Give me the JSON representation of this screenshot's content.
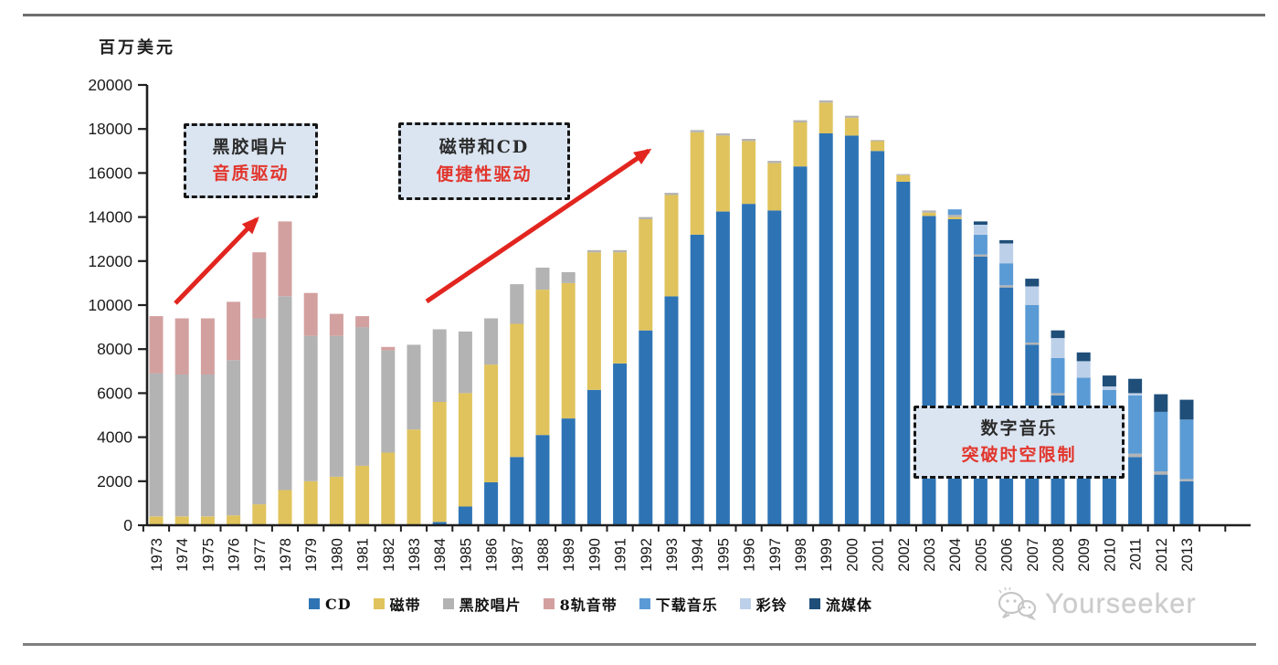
{
  "figure": {
    "unit_label": "百万美元",
    "watermark_text": "Yourseeker"
  },
  "callouts": {
    "vinyl": {
      "line1": "黑胶唱片",
      "line2": "音质驱动"
    },
    "cassette_cd": {
      "line1": "磁带和CD",
      "line2": "便捷性驱动"
    },
    "digital": {
      "line1": "数字音乐",
      "line2": "突破时空限制"
    }
  },
  "colors": {
    "axis": "#1f1f1f",
    "arrow": "#e2251f",
    "callout_bg": "#dbe5f1",
    "callout_red_text": "#e2352c"
  },
  "chart_data": {
    "type": "bar",
    "stacked": true,
    "title": "",
    "ylabel": "百万美元",
    "xlabel": "",
    "ylim": [
      0,
      20000
    ],
    "ytick_step": 2000,
    "grid": false,
    "legend_position": "bottom",
    "x": [
      1973,
      1974,
      1975,
      1976,
      1977,
      1978,
      1979,
      1980,
      1981,
      1982,
      1983,
      1984,
      1985,
      1986,
      1987,
      1988,
      1989,
      1990,
      1991,
      1992,
      1993,
      1994,
      1995,
      1996,
      1997,
      1998,
      1999,
      2000,
      2001,
      2002,
      2003,
      2004,
      2005,
      2006,
      2007,
      2008,
      2009,
      2010,
      2011,
      2012,
      2013
    ],
    "series": [
      {
        "name": "CD",
        "color": "#2e74b5",
        "values": [
          0,
          0,
          0,
          0,
          0,
          0,
          0,
          0,
          0,
          0,
          0,
          150,
          850,
          1950,
          3100,
          4100,
          4850,
          6150,
          7350,
          8850,
          10400,
          13200,
          14250,
          14600,
          14300,
          16300,
          17800,
          17700,
          17000,
          15600,
          14050,
          13900,
          12200,
          10800,
          8200,
          5900,
          4600,
          3400,
          3100,
          2300,
          2000
        ]
      },
      {
        "name": "磁带",
        "color": "#e0c35c",
        "values": [
          400,
          400,
          400,
          450,
          950,
          1600,
          2000,
          2200,
          2700,
          3300,
          4350,
          5450,
          5150,
          5350,
          6050,
          6600,
          6150,
          6250,
          5050,
          5050,
          4600,
          4650,
          3450,
          2850,
          2150,
          2000,
          1400,
          800,
          450,
          300,
          150,
          100,
          0,
          0,
          0,
          0,
          0,
          0,
          0,
          0,
          0
        ]
      },
      {
        "name": "黑胶唱片",
        "color": "#b3b3b3",
        "values": [
          6500,
          6450,
          6450,
          7050,
          8450,
          8800,
          6600,
          6400,
          6300,
          4650,
          3850,
          3300,
          2800,
          2100,
          1800,
          1000,
          500,
          100,
          100,
          100,
          100,
          100,
          100,
          100,
          100,
          100,
          100,
          100,
          50,
          50,
          100,
          100,
          100,
          100,
          100,
          100,
          100,
          150,
          150,
          150,
          100
        ]
      },
      {
        "name": "8轨音带",
        "color": "#d3a0a0",
        "values": [
          2600,
          2550,
          2550,
          2650,
          3000,
          3400,
          1950,
          1000,
          500,
          150,
          0,
          0,
          0,
          0,
          0,
          0,
          0,
          0,
          0,
          0,
          0,
          0,
          0,
          0,
          0,
          0,
          0,
          0,
          0,
          0,
          0,
          0,
          0,
          0,
          0,
          0,
          0,
          0,
          0,
          0,
          0
        ]
      },
      {
        "name": "下载音乐",
        "color": "#5b9bd5",
        "values": [
          0,
          0,
          0,
          0,
          0,
          0,
          0,
          0,
          0,
          0,
          0,
          0,
          0,
          0,
          0,
          0,
          0,
          0,
          0,
          0,
          0,
          0,
          0,
          0,
          0,
          0,
          0,
          0,
          0,
          0,
          0,
          250,
          900,
          1000,
          1700,
          1600,
          2000,
          2600,
          2650,
          2700,
          2700
        ]
      },
      {
        "name": "彩铃",
        "color": "#bdd0e9",
        "values": [
          0,
          0,
          0,
          0,
          0,
          0,
          0,
          0,
          0,
          0,
          0,
          0,
          0,
          0,
          0,
          0,
          0,
          0,
          0,
          0,
          0,
          0,
          0,
          0,
          0,
          0,
          0,
          0,
          0,
          0,
          0,
          0,
          450,
          900,
          850,
          900,
          750,
          150,
          100,
          0,
          0
        ]
      },
      {
        "name": "流媒体",
        "color": "#1f4e79",
        "values": [
          0,
          0,
          0,
          0,
          0,
          0,
          0,
          0,
          0,
          0,
          0,
          0,
          0,
          0,
          0,
          0,
          0,
          0,
          0,
          0,
          0,
          0,
          0,
          0,
          0,
          0,
          0,
          0,
          0,
          0,
          0,
          0,
          150,
          150,
          350,
          350,
          400,
          500,
          650,
          800,
          900
        ]
      }
    ],
    "annotations": [
      {
        "text": "黑胶唱片 音质驱动",
        "type": "callout"
      },
      {
        "text": "磁带和CD 便捷性驱动",
        "type": "callout"
      },
      {
        "text": "数字音乐 突破时空限制",
        "type": "callout"
      }
    ]
  }
}
